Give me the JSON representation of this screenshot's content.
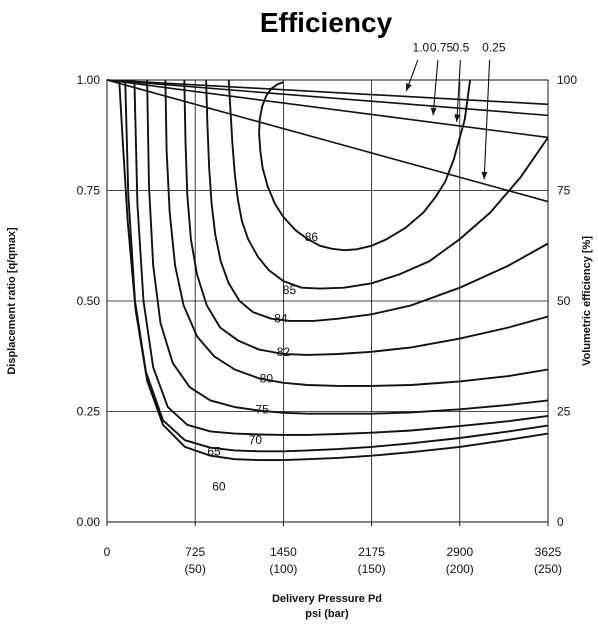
{
  "chart_data": {
    "type": "line",
    "title": "Efficiency",
    "xlabel_line1": "Delivery Pressure Pd",
    "xlabel_line2": "psi (bar)",
    "ylabel_left": "Displacement ratio [q/qmax]",
    "ylabel_right": "Volumetric efficiency [%]",
    "xlim": [
      0,
      3625
    ],
    "ylim": [
      0,
      1.0
    ],
    "x_ticks": [
      {
        "value": 0,
        "psi": "0",
        "bar": ""
      },
      {
        "value": 725,
        "psi": "725",
        "bar": "(50)"
      },
      {
        "value": 1450,
        "psi": "1450",
        "bar": "(100)"
      },
      {
        "value": 2175,
        "psi": "2175",
        "bar": "(150)"
      },
      {
        "value": 2900,
        "psi": "2900",
        "bar": "(200)"
      },
      {
        "value": 3625,
        "psi": "3625",
        "bar": "(250)"
      }
    ],
    "y_ticks_left": [
      {
        "value": 0,
        "label": "0.00"
      },
      {
        "value": 0.25,
        "label": "0.25"
      },
      {
        "value": 0.5,
        "label": "0.50"
      },
      {
        "value": 0.75,
        "label": "0.75"
      },
      {
        "value": 1.0,
        "label": "1.00"
      }
    ],
    "y_ticks_right": [
      {
        "value": 0,
        "label": "0"
      },
      {
        "value": 0.25,
        "label": "25"
      },
      {
        "value": 0.5,
        "label": "50"
      },
      {
        "value": 0.75,
        "label": "75"
      },
      {
        "value": 1.0,
        "label": "100"
      }
    ],
    "grid": true,
    "volumetric_efficiency_lines": [
      {
        "label": "1.0",
        "x": [
          0,
          3625
        ],
        "y": [
          1.0,
          0.945
        ],
        "label_x": 2580,
        "label_y": 1.065,
        "arrow": {
          "from": [
            2555,
            1.045
          ],
          "to": [
            2460,
            0.975
          ]
        }
      },
      {
        "label": "0.75",
        "x": [
          0,
          3625
        ],
        "y": [
          1.0,
          0.92
        ],
        "label_x": 2750,
        "label_y": 1.065,
        "arrow": {
          "from": [
            2720,
            1.045
          ],
          "to": [
            2680,
            0.92
          ]
        }
      },
      {
        "label": "0.5",
        "x": [
          0,
          3625
        ],
        "y": [
          1.0,
          0.87
        ],
        "label_x": 2910,
        "label_y": 1.065,
        "arrow": {
          "from": [
            2905,
            1.045
          ],
          "to": [
            2875,
            0.905
          ]
        }
      },
      {
        "label": "0.25",
        "x": [
          0,
          3625
        ],
        "y": [
          1.0,
          0.725
        ],
        "label_x": 3180,
        "label_y": 1.065,
        "arrow": {
          "from": [
            3145,
            1.045
          ],
          "to": [
            3100,
            0.775
          ]
        }
      }
    ],
    "efficiency_contours": [
      {
        "label": "86",
        "label_x": 1680,
        "label_y": 0.645,
        "closed_top": true,
        "x": [
          2985,
          2965,
          2940,
          2900,
          2850,
          2780,
          2700,
          2600,
          2450,
          2300,
          2175,
          2050,
          1950,
          1850,
          1750,
          1650,
          1550,
          1450,
          1380,
          1320,
          1280,
          1260,
          1250,
          1255,
          1275,
          1310,
          1350,
          1400,
          1450
        ],
        "y": [
          1.0,
          0.96,
          0.91,
          0.87,
          0.82,
          0.77,
          0.735,
          0.7,
          0.665,
          0.64,
          0.625,
          0.617,
          0.615,
          0.618,
          0.625,
          0.64,
          0.66,
          0.69,
          0.72,
          0.76,
          0.8,
          0.84,
          0.88,
          0.91,
          0.94,
          0.965,
          0.98,
          0.99,
          0.995
        ]
      },
      {
        "label": "85",
        "label_x": 1500,
        "label_y": 0.525,
        "x": [
          3625,
          3400,
          3150,
          2900,
          2650,
          2400,
          2175,
          1950,
          1750,
          1600,
          1450,
          1330,
          1240,
          1160,
          1110,
          1075,
          1050,
          1030,
          1015,
          1000
        ],
        "y": [
          0.87,
          0.78,
          0.7,
          0.64,
          0.59,
          0.56,
          0.54,
          0.53,
          0.528,
          0.53,
          0.545,
          0.57,
          0.6,
          0.64,
          0.68,
          0.73,
          0.79,
          0.86,
          0.93,
          1.0
        ]
      },
      {
        "label": "84",
        "label_x": 1430,
        "label_y": 0.46,
        "x": [
          3625,
          3300,
          2900,
          2500,
          2175,
          1900,
          1700,
          1500,
          1350,
          1200,
          1090,
          1000,
          935,
          890,
          860,
          840,
          825,
          815
        ],
        "y": [
          0.63,
          0.58,
          0.53,
          0.49,
          0.47,
          0.46,
          0.455,
          0.455,
          0.46,
          0.475,
          0.5,
          0.54,
          0.59,
          0.65,
          0.72,
          0.8,
          0.9,
          1.0
        ]
      },
      {
        "label": "82",
        "label_x": 1450,
        "label_y": 0.385,
        "x": [
          3625,
          3300,
          2900,
          2500,
          2175,
          1900,
          1650,
          1450,
          1250,
          1080,
          930,
          820,
          740,
          690,
          660,
          645,
          635
        ],
        "y": [
          0.465,
          0.44,
          0.415,
          0.395,
          0.385,
          0.38,
          0.378,
          0.38,
          0.39,
          0.41,
          0.44,
          0.49,
          0.56,
          0.64,
          0.74,
          0.86,
          1.0
        ]
      },
      {
        "label": "80",
        "label_x": 1310,
        "label_y": 0.325,
        "x": [
          3625,
          3300,
          2900,
          2500,
          2175,
          1900,
          1650,
          1450,
          1250,
          1050,
          880,
          740,
          630,
          560,
          515,
          490,
          480
        ],
        "y": [
          0.345,
          0.33,
          0.318,
          0.31,
          0.308,
          0.308,
          0.31,
          0.315,
          0.325,
          0.345,
          0.375,
          0.42,
          0.49,
          0.58,
          0.7,
          0.84,
          1.0
        ]
      },
      {
        "label": "75",
        "label_x": 1275,
        "label_y": 0.255,
        "x": [
          3625,
          3300,
          2900,
          2500,
          2175,
          1900,
          1650,
          1450,
          1250,
          1050,
          850,
          680,
          540,
          440,
          380,
          345,
          330
        ],
        "y": [
          0.275,
          0.265,
          0.255,
          0.248,
          0.245,
          0.245,
          0.245,
          0.247,
          0.252,
          0.26,
          0.275,
          0.305,
          0.36,
          0.45,
          0.58,
          0.76,
          1.0
        ]
      },
      {
        "label": "70",
        "label_x": 1220,
        "label_y": 0.185,
        "x": [
          3625,
          3300,
          2900,
          2500,
          2175,
          1900,
          1650,
          1450,
          1250,
          1050,
          850,
          660,
          500,
          380,
          300,
          250,
          225
        ],
        "y": [
          0.24,
          0.228,
          0.217,
          0.207,
          0.202,
          0.199,
          0.197,
          0.197,
          0.198,
          0.2,
          0.205,
          0.22,
          0.26,
          0.35,
          0.5,
          0.72,
          1.0
        ]
      },
      {
        "label": "65",
        "label_x": 880,
        "label_y": 0.16,
        "x": [
          3625,
          3300,
          2900,
          2500,
          2175,
          1900,
          1650,
          1450,
          1250,
          1050,
          850,
          640,
          460,
          320,
          230,
          175,
          150
        ],
        "y": [
          0.218,
          0.205,
          0.19,
          0.178,
          0.17,
          0.165,
          0.162,
          0.16,
          0.16,
          0.162,
          0.168,
          0.185,
          0.23,
          0.34,
          0.5,
          0.74,
          1.0
        ]
      },
      {
        "label": "60",
        "label_x": 920,
        "label_y": 0.08,
        "x": [
          3625,
          3300,
          2900,
          2500,
          2175,
          1900,
          1650,
          1450,
          1250,
          1050,
          850,
          640,
          460,
          330,
          235,
          170,
          130,
          100
        ],
        "y": [
          0.2,
          0.186,
          0.17,
          0.158,
          0.15,
          0.145,
          0.142,
          0.14,
          0.14,
          0.142,
          0.15,
          0.17,
          0.22,
          0.32,
          0.48,
          0.68,
          0.86,
          1.0
        ]
      }
    ]
  }
}
